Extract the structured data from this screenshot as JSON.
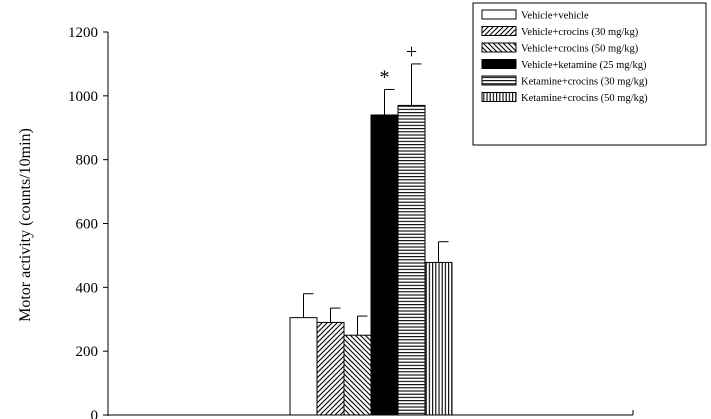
{
  "chart_data": {
    "type": "bar",
    "title": "",
    "xlabel": "",
    "ylabel": "Motor activity (counts/10min)",
    "ylim": [
      0,
      1200
    ],
    "yticks": [
      0,
      200,
      400,
      600,
      800,
      1000,
      1200
    ],
    "grid": false,
    "legend_position": "top-right",
    "series": [
      {
        "name": "Vehicle+vehicle",
        "value": 305,
        "error": 75,
        "pattern": "empty",
        "annotation": ""
      },
      {
        "name": "Vehicle+crocins (30 mg/kg)",
        "value": 290,
        "error": 45,
        "pattern": "diagonal-up",
        "annotation": ""
      },
      {
        "name": "Vehicle+crocins (50 mg/kg)",
        "value": 250,
        "error": 60,
        "pattern": "diagonal-down",
        "annotation": ""
      },
      {
        "name": "Vehicle+ketamine (25 mg/kg)",
        "value": 940,
        "error": 80,
        "pattern": "solid",
        "annotation": "*"
      },
      {
        "name": "Ketamine+crocins (30 mg/kg)",
        "value": 970,
        "error": 130,
        "pattern": "horizontal",
        "annotation": "+"
      },
      {
        "name": "Ketamine+crocins (50 mg/kg)",
        "value": 478,
        "error": 65,
        "pattern": "vertical",
        "annotation": ""
      }
    ]
  }
}
